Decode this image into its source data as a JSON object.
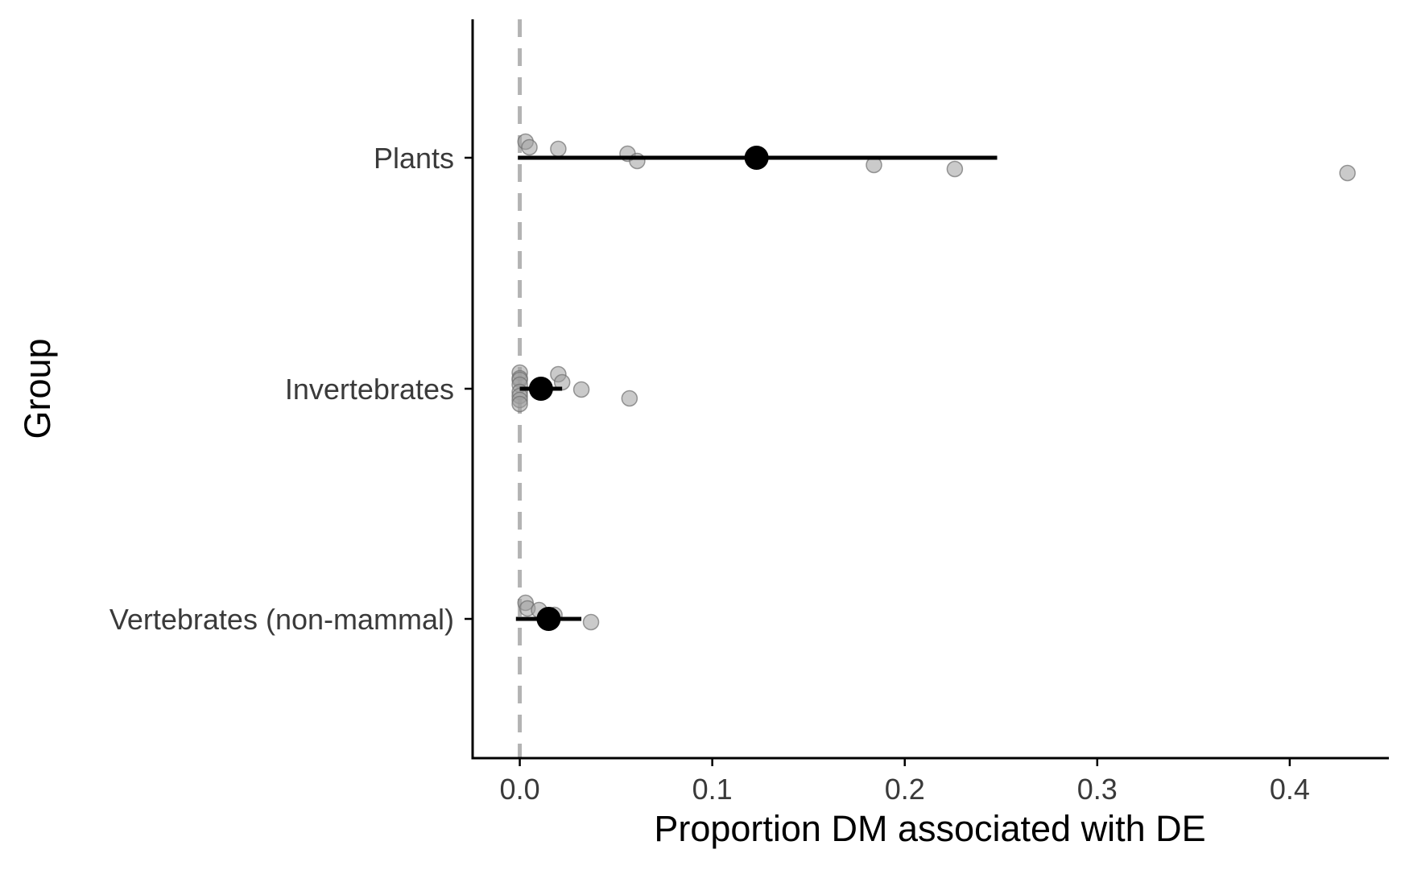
{
  "chart_data": {
    "type": "scatter",
    "xlabel": "Proportion DM associated with DE",
    "ylabel": "Group",
    "xlim": [
      -0.0245,
      0.4515
    ],
    "x_ticks": [
      0.0,
      0.1,
      0.2,
      0.3,
      0.4
    ],
    "x_tick_labels": [
      "0.0",
      "0.1",
      "0.2",
      "0.3",
      "0.4"
    ],
    "reference_line_x": 0,
    "grid": false,
    "categories": [
      "Plants",
      "Invertebrates",
      "Vertebrates (non-mammal)"
    ],
    "groups": [
      {
        "name": "Plants",
        "mean": 0.123,
        "ci": [
          -0.001,
          0.248
        ],
        "points": [
          0.003,
          0.005,
          0.02,
          0.056,
          0.061,
          0.184,
          0.226,
          0.43
        ]
      },
      {
        "name": "Invertebrates",
        "mean": 0.011,
        "ci": [
          0.0,
          0.022
        ],
        "points": [
          0.0,
          0.0,
          0.0,
          0.0,
          0.0,
          0.0,
          0.0,
          0.0,
          0.02,
          0.022,
          0.032,
          0.057
        ]
      },
      {
        "name": "Vertebrates (non-mammal)",
        "mean": 0.015,
        "ci": [
          -0.002,
          0.032
        ],
        "points": [
          0.003,
          0.004,
          0.01,
          0.018,
          0.037
        ]
      }
    ],
    "colors": {
      "mean": "#000000",
      "points": "#9e9e9e",
      "reference_line": "#b3b3b3",
      "axis": "#000000"
    }
  }
}
